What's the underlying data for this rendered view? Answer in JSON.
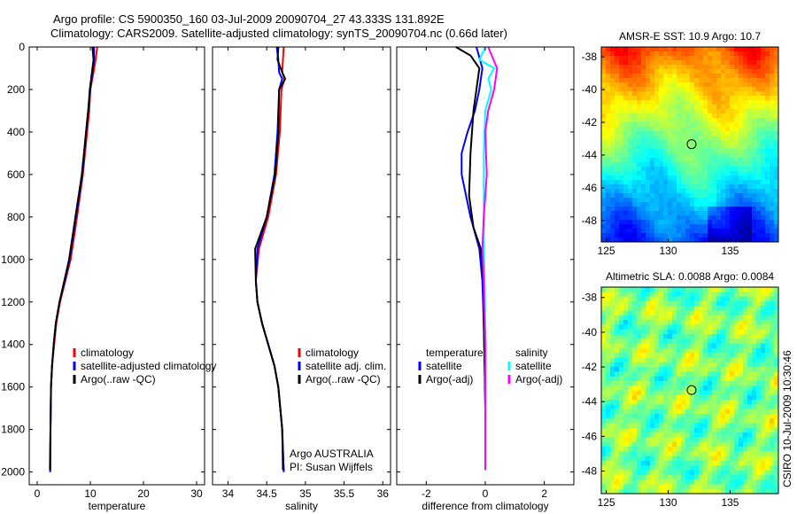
{
  "header": {
    "line1": "Argo profile: CS 5900350_160 03-Jul-2009 20090704_27 43.333S 131.892E",
    "line2": "Climatology: CARS2009. Satellite-adjusted climatology: synTS_20090704.nc (0.66d later)"
  },
  "side_label": "CSIRO 10-Jul-2009 10:30:46",
  "colors": {
    "climatology": "#ff0000",
    "satellite": "#0000ff",
    "argo": "#000000",
    "salinity_satellite": "#00ffff",
    "salinity_argo": "#ff00ff"
  },
  "chart_data": [
    {
      "type": "line",
      "xlabel": "temperature",
      "xlim": [
        -1.5,
        31.5
      ],
      "ylim": [
        2060,
        0
      ],
      "xticks": [
        "0",
        "10",
        "20",
        "30"
      ],
      "yticks": [
        "0",
        "200",
        "400",
        "600",
        "800",
        "1000",
        "1200",
        "1400",
        "1600",
        "1800",
        "2000"
      ],
      "legend": [
        "climatology",
        "satellite-adjusted climatology",
        "Argo(..raw -QC)"
      ],
      "series": [
        {
          "name": "climatology",
          "color": "#ff0000",
          "x": [
            11.3,
            11.0,
            10.6,
            10.0,
            9.8,
            9.4,
            8.6,
            7.5,
            6.3,
            5.3,
            4.3,
            3.6,
            3.2,
            2.8,
            2.6,
            2.5,
            2.45
          ],
          "y": [
            0,
            60,
            120,
            200,
            300,
            400,
            600,
            800,
            1000,
            1100,
            1200,
            1300,
            1400,
            1500,
            1600,
            1800,
            2000
          ]
        },
        {
          "name": "satellite-adjusted climatology",
          "color": "#0000ff",
          "x": [
            10.7,
            10.7,
            10.4,
            10.0,
            9.6,
            9.2,
            8.5,
            7.3,
            6.1,
            5.2,
            4.2,
            3.5,
            3.1,
            2.8,
            2.6,
            2.5,
            2.45
          ],
          "y": [
            0,
            60,
            120,
            200,
            300,
            400,
            600,
            800,
            1000,
            1100,
            1200,
            1300,
            1400,
            1500,
            1600,
            1800,
            2000
          ]
        },
        {
          "name": "Argo(..raw -QC)",
          "color": "#000000",
          "x": [
            10.4,
            10.6,
            10.3,
            9.9,
            9.6,
            9.2,
            8.4,
            7.2,
            6.0,
            5.1,
            4.2,
            3.5,
            3.1,
            2.8,
            2.6,
            2.5,
            2.4
          ],
          "y": [
            0,
            60,
            120,
            200,
            300,
            400,
            600,
            800,
            1000,
            1100,
            1200,
            1300,
            1400,
            1500,
            1600,
            1800,
            1990
          ]
        }
      ]
    },
    {
      "type": "line",
      "xlabel": "salinity",
      "xlim": [
        33.8,
        36.1
      ],
      "ylim": [
        2060,
        0
      ],
      "xticks": [
        "34",
        "34.5",
        "35",
        "35.5",
        "36"
      ],
      "legend": [
        "climatology",
        "satellite adj. clim.",
        "Argo(..raw -QC)"
      ],
      "annotation": [
        "Argo AUSTRALIA",
        "PI: Susan Wijffels"
      ],
      "series": [
        {
          "name": "climatology",
          "color": "#ff0000",
          "x": [
            34.72,
            34.71,
            34.7,
            34.73,
            34.69,
            34.67,
            34.62,
            34.52,
            34.4,
            34.36,
            34.38,
            34.44,
            34.52,
            34.6,
            34.65,
            34.7,
            34.72
          ],
          "y": [
            0,
            60,
            120,
            150,
            200,
            400,
            600,
            800,
            950,
            1100,
            1200,
            1300,
            1400,
            1500,
            1600,
            1800,
            2000
          ]
        },
        {
          "name": "satellite adj. clim.",
          "color": "#0000ff",
          "x": [
            34.63,
            34.65,
            34.66,
            34.7,
            34.66,
            34.64,
            34.6,
            34.5,
            34.38,
            34.36,
            34.38,
            34.44,
            34.52,
            34.6,
            34.65,
            34.7,
            34.72
          ],
          "y": [
            0,
            60,
            120,
            150,
            200,
            400,
            600,
            800,
            950,
            1100,
            1200,
            1300,
            1400,
            1500,
            1600,
            1800,
            2000
          ]
        },
        {
          "name": "Argo(..raw -QC)",
          "color": "#000000",
          "x": [
            34.65,
            34.64,
            34.7,
            34.74,
            34.66,
            34.65,
            34.61,
            34.5,
            34.35,
            34.36,
            34.38,
            34.44,
            34.52,
            34.6,
            34.65,
            34.7,
            34.71
          ],
          "y": [
            0,
            60,
            120,
            150,
            200,
            400,
            600,
            800,
            950,
            1100,
            1200,
            1300,
            1400,
            1500,
            1600,
            1800,
            1990
          ]
        }
      ]
    },
    {
      "type": "line",
      "xlabel": "difference from climatology",
      "xlim": [
        -3.0,
        3.0
      ],
      "ylim": [
        2060,
        0
      ],
      "xticks": [
        "-2",
        "0",
        "2"
      ],
      "legend_groups": [
        {
          "title": "temperature",
          "items": [
            "satellite",
            "Argo(-adj)"
          ]
        },
        {
          "title": "salinity",
          "items": [
            "satellite",
            "Argo(-adj)"
          ]
        }
      ],
      "series": [
        {
          "name": "temperature satellite",
          "color": "#0000ff",
          "x": [
            -0.3,
            -0.1,
            -0.2,
            -0.35,
            -0.6,
            -0.8,
            -0.8,
            -0.5,
            -0.2,
            -0.1,
            -0.05,
            -0.02,
            0.0,
            0.0
          ],
          "y": [
            0,
            100,
            200,
            300,
            400,
            500,
            600,
            800,
            950,
            1100,
            1300,
            1500,
            1700,
            1990
          ]
        },
        {
          "name": "temperature Argo(-adj)",
          "color": "#000000",
          "x": [
            -1.0,
            -0.5,
            -0.2,
            -0.3,
            -0.4,
            -0.5,
            -0.55,
            -0.4,
            -0.15,
            -0.05,
            -0.05,
            -0.02,
            0.0,
            0.0
          ],
          "y": [
            0,
            40,
            100,
            200,
            300,
            500,
            700,
            850,
            950,
            1100,
            1300,
            1500,
            1700,
            1990
          ]
        },
        {
          "name": "salinity satellite",
          "color": "#00ffff",
          "x": [
            0.0,
            -0.2,
            0.3,
            0.1,
            0.2,
            0.0,
            -0.05,
            -0.05,
            -0.05,
            -0.02,
            0.0,
            0.0,
            0.0
          ],
          "y": [
            0,
            60,
            100,
            150,
            200,
            300,
            500,
            700,
            900,
            1100,
            1400,
            1700,
            1990
          ]
        },
        {
          "name": "salinity Argo(-adj)",
          "color": "#ff00ff",
          "x": [
            0.1,
            0.4,
            0.3,
            0.1,
            0.0,
            0.05,
            -0.05,
            -0.1,
            -0.05,
            0.0,
            0.0,
            0.0
          ],
          "y": [
            0,
            100,
            200,
            300,
            400,
            600,
            800,
            950,
            1100,
            1400,
            1700,
            1990
          ]
        }
      ]
    },
    {
      "type": "heatmap",
      "title": "AMSR-E SST: 10.9 Argo: 10.7",
      "xlim": [
        124.6,
        138.9
      ],
      "ylim": [
        -49.3,
        -37.4
      ],
      "xticks": [
        "125",
        "130",
        "135"
      ],
      "yticks": [
        "-38",
        "-40",
        "-42",
        "-44",
        "-46",
        "-48"
      ],
      "marker": {
        "lon": 131.892,
        "lat": -43.333
      }
    },
    {
      "type": "heatmap",
      "title": "Altimetric SLA: 0.0088 Argo: 0.0084",
      "xlim": [
        124.6,
        138.9
      ],
      "ylim": [
        -49.3,
        -37.4
      ],
      "xticks": [
        "125",
        "130",
        "135"
      ],
      "yticks": [
        "-38",
        "-40",
        "-42",
        "-44",
        "-46",
        "-48"
      ],
      "marker": {
        "lon": 131.892,
        "lat": -43.333
      }
    }
  ]
}
